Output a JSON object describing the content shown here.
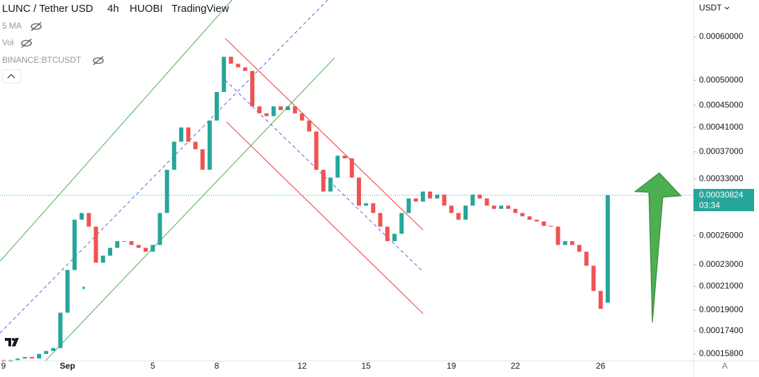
{
  "header": {
    "symbol": "LUNC / Tether USD",
    "interval": "4h",
    "exchange": "HUOBI",
    "source": "TradingView",
    "indicators": [
      "5 MA",
      "Vol",
      "BINANCE:BTCUSDT"
    ],
    "currency": "USDT",
    "countdown": "03:34",
    "scale_mode": "A"
  },
  "chart_data": {
    "type": "candlestick",
    "log_scale": true,
    "grid": false,
    "up_color": "#26a69a",
    "down_color": "#ef5350",
    "categories": [
      "9",
      null,
      null,
      null,
      null,
      null,
      null,
      null,
      null,
      "Sep",
      null,
      null,
      null,
      null,
      null,
      null,
      null,
      null,
      null,
      null,
      null,
      "5",
      null,
      null,
      null,
      null,
      null,
      null,
      null,
      null,
      "8",
      null,
      null,
      null,
      null,
      null,
      null,
      null,
      null,
      null,
      null,
      null,
      "12",
      null,
      null,
      null,
      null,
      null,
      null,
      null,
      null,
      "15",
      null,
      null,
      null,
      null,
      null,
      null,
      null,
      null,
      null,
      null,
      null,
      "19",
      null,
      null,
      null,
      null,
      null,
      null,
      null,
      null,
      "22",
      null,
      null,
      null,
      null,
      null,
      null,
      null,
      null,
      null,
      null,
      null,
      "26",
      null
    ],
    "open": [
      0.000154,
      0.000153,
      0.000154,
      0.000155,
      0.000156,
      0.000155,
      0.000158,
      0.00016,
      0.000162,
      0.000188,
      0.000225,
      0.000278,
      0.000286,
      0.00027,
      0.000232,
      0.000239,
      0.000247,
      0.000254,
      0.000254,
      0.00025,
      0.000247,
      0.000243,
      0.00025,
      0.000286,
      0.000343,
      0.000386,
      0.00041,
      0.000386,
      0.000374,
      0.000343,
      0.000422,
      0.000476,
      0.000552,
      0.000536,
      0.000528,
      0.00052,
      0.000448,
      0.000435,
      0.00043,
      0.000448,
      0.000441,
      0.000448,
      0.000435,
      0.000422,
      0.000403,
      0.000343,
      0.000313,
      0.000332,
      0.000364,
      0.00036,
      0.000332,
      0.000295,
      0.000298,
      0.000286,
      0.00027,
      0.000254,
      0.000262,
      0.000286,
      0.000304,
      0.0003,
      0.000313,
      0.000304,
      0.000309,
      0.000295,
      0.000286,
      0.000278,
      0.000295,
      0.000309,
      0.000304,
      0.000295,
      0.000291,
      0.000295,
      0.000291,
      0.000286,
      0.000282,
      0.000278,
      0.000276,
      0.000271,
      0.00027,
      0.00025,
      0.000254,
      0.00025,
      0.000243,
      0.000229,
      0.000206,
      0.000196
    ],
    "close": [
      0.000153,
      0.000154,
      0.000155,
      0.000156,
      0.000155,
      0.000158,
      0.00016,
      0.000162,
      0.000188,
      0.000225,
      0.000278,
      0.000286,
      0.00027,
      0.000232,
      0.000239,
      0.000247,
      0.000254,
      0.000254,
      0.00025,
      0.000247,
      0.000243,
      0.00025,
      0.000286,
      0.000343,
      0.000386,
      0.00041,
      0.000386,
      0.000374,
      0.000343,
      0.000422,
      0.000476,
      0.000552,
      0.000536,
      0.000528,
      0.00052,
      0.000448,
      0.000435,
      0.00043,
      0.000448,
      0.000441,
      0.000448,
      0.000435,
      0.000422,
      0.000403,
      0.000343,
      0.000313,
      0.000332,
      0.000364,
      0.00036,
      0.000332,
      0.000295,
      0.000298,
      0.000286,
      0.00027,
      0.000254,
      0.000262,
      0.000286,
      0.000304,
      0.0003,
      0.000313,
      0.000304,
      0.000309,
      0.000295,
      0.000286,
      0.000278,
      0.000295,
      0.000309,
      0.000304,
      0.000295,
      0.000291,
      0.000295,
      0.000291,
      0.000286,
      0.000282,
      0.000278,
      0.000276,
      0.000271,
      0.00027,
      0.00025,
      0.000254,
      0.00025,
      0.000243,
      0.000229,
      0.000206,
      0.000191,
      0.00030824
    ],
    "ylim": [
      0.0001534,
      0.000701
    ],
    "yticks": [
      {
        "value": 0.0006,
        "label": "0.00060000"
      },
      {
        "value": 0.0005,
        "label": "0.00050000"
      },
      {
        "value": 0.00045,
        "label": "0.00045000"
      },
      {
        "value": 0.00041,
        "label": "0.00041000"
      },
      {
        "value": 0.00037,
        "label": "0.00037000"
      },
      {
        "value": 0.00033,
        "label": "0.00033000"
      },
      {
        "value": 0.00026,
        "label": "0.00026000"
      },
      {
        "value": 0.00023,
        "label": "0.00023000"
      },
      {
        "value": 0.00021,
        "label": "0.00021000"
      },
      {
        "value": 0.00019,
        "label": "0.00019000"
      },
      {
        "value": 0.000174,
        "label": "0.00017400"
      },
      {
        "value": 0.000158,
        "label": "0.00015800"
      }
    ]
  }
}
